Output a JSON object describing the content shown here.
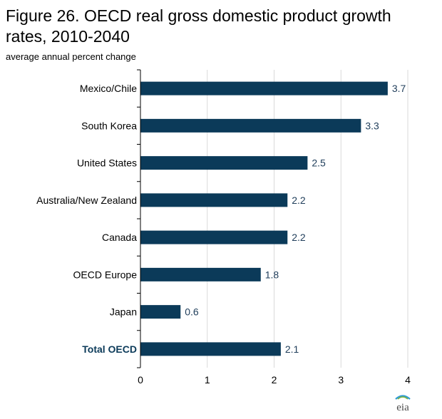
{
  "title": "Figure 26. OECD real gross domestic product growth rates, 2010-2040",
  "subtitle": "average annual percent change",
  "logo_text": "eia",
  "colors": {
    "bar": "#0b3a59",
    "value_label": "#1f3d5a",
    "total_label": "#0b3a59",
    "grid": "#d9d9d9",
    "axis": "#000000"
  },
  "chart_data": {
    "type": "bar",
    "orientation": "horizontal",
    "categories": [
      "Mexico/Chile",
      "South Korea",
      "United States",
      "Australia/New Zealand",
      "Canada",
      "OECD Europe",
      "Japan",
      "Total OECD"
    ],
    "values": [
      3.7,
      3.3,
      2.5,
      2.2,
      2.2,
      1.8,
      0.6,
      2.1
    ],
    "value_labels": [
      "3.7",
      "3.3",
      "2.5",
      "2.2",
      "2.2",
      "1.8",
      "0.6",
      "2.1"
    ],
    "highlight_category": "Total OECD",
    "xlim": [
      0,
      4
    ],
    "xticks": [
      0,
      1,
      2,
      3,
      4
    ],
    "grid": true,
    "title": "Figure 26. OECD real gross domestic product growth rates, 2010-2040",
    "subtitle": "average annual percent change",
    "xlabel": "",
    "ylabel": ""
  }
}
